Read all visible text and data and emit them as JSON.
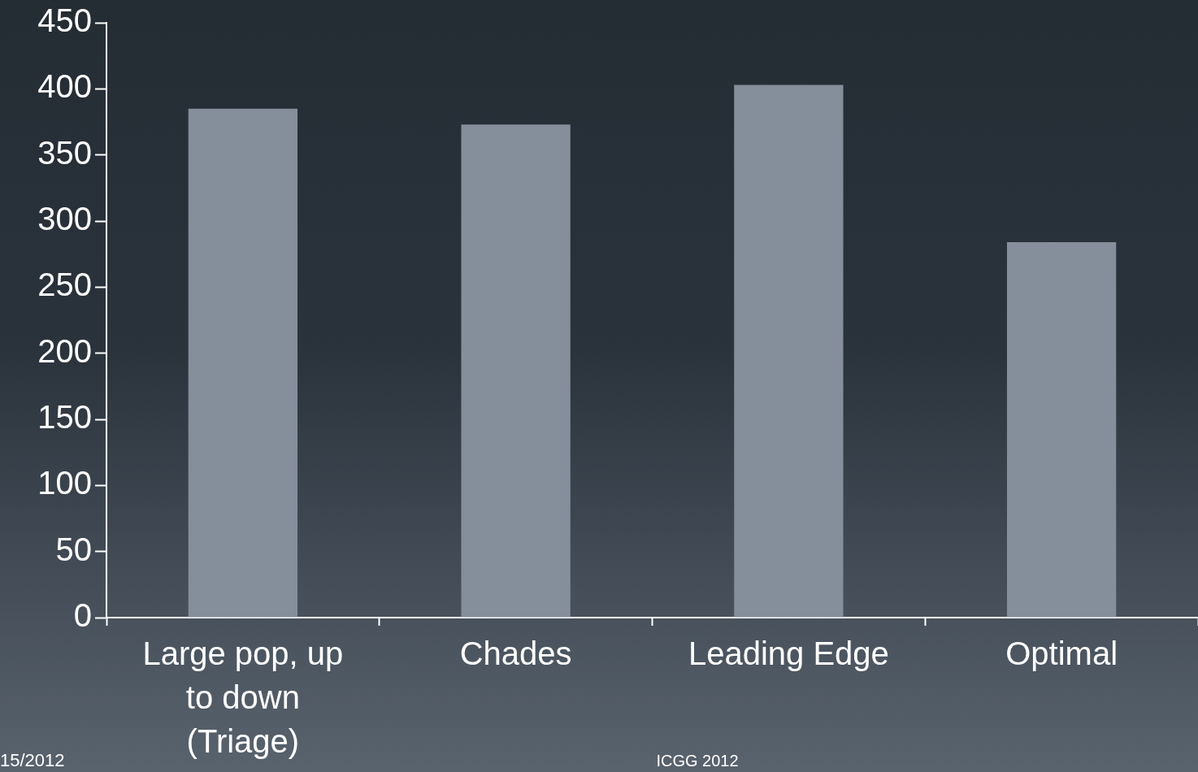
{
  "chart_data": {
    "type": "bar",
    "categories": [
      "Large pop, up to down (Triage)",
      "Chades",
      "Leading Edge",
      "Optimal"
    ],
    "values": [
      385,
      373,
      403,
      284
    ],
    "color": "#858e9b",
    "ylim": [
      0,
      450
    ],
    "yticks": [
      0,
      50,
      100,
      150,
      200,
      250,
      300,
      350,
      400,
      450
    ],
    "grid": false,
    "legend": false,
    "annotations": [
      "15/2012",
      "ICGG 2012"
    ]
  }
}
